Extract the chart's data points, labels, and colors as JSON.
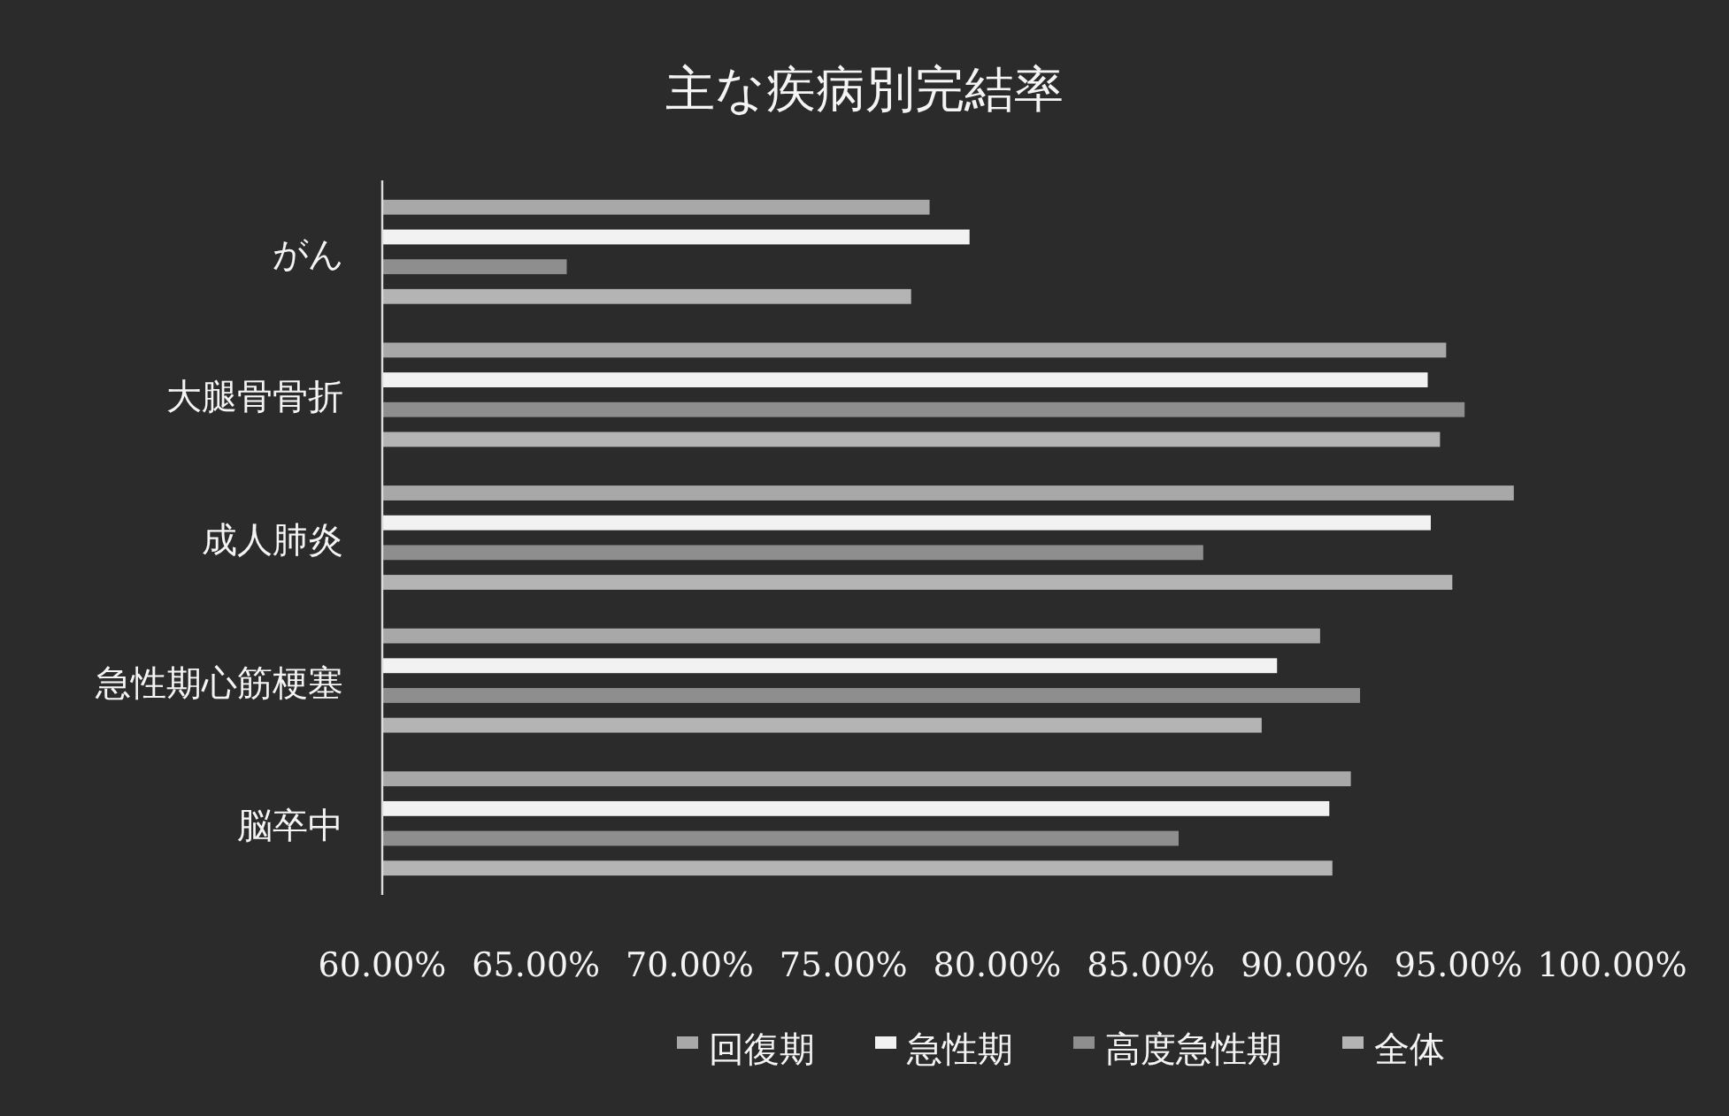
{
  "chart_data": {
    "type": "bar",
    "orientation": "horizontal",
    "title": "主な疾病別完結率",
    "categories": [
      "がん",
      "大腿骨骨折",
      "成人肺炎",
      "急性期心筋梗塞",
      "脳卒中"
    ],
    "series": [
      {
        "name": "回復期",
        "color": "#a8a8a8",
        "values": [
          77.8,
          94.6,
          96.8,
          90.5,
          91.5
        ]
      },
      {
        "name": "急性期",
        "color": "#f2f2f2",
        "values": [
          79.1,
          94.0,
          94.1,
          89.1,
          90.8
        ]
      },
      {
        "name": "高度急性期",
        "color": "#8e8e8e",
        "values": [
          66.0,
          95.2,
          86.7,
          91.8,
          85.9
        ]
      },
      {
        "name": "全体",
        "color": "#b4b4b4",
        "values": [
          77.2,
          94.4,
          94.8,
          88.6,
          90.9
        ]
      }
    ],
    "xlim": [
      60,
      100
    ],
    "xticks": [
      {
        "value": 60,
        "label": "60.00%"
      },
      {
        "value": 65,
        "label": "65.00%"
      },
      {
        "value": 70,
        "label": "70.00%"
      },
      {
        "value": 75,
        "label": "75.00%"
      },
      {
        "value": 80,
        "label": "80.00%"
      },
      {
        "value": 85,
        "label": "85.00%"
      },
      {
        "value": 90,
        "label": "90.00%"
      },
      {
        "value": 95,
        "label": "95.00%"
      },
      {
        "value": 100,
        "label": "100.00%"
      }
    ],
    "grid": false,
    "legend": "bottom"
  }
}
